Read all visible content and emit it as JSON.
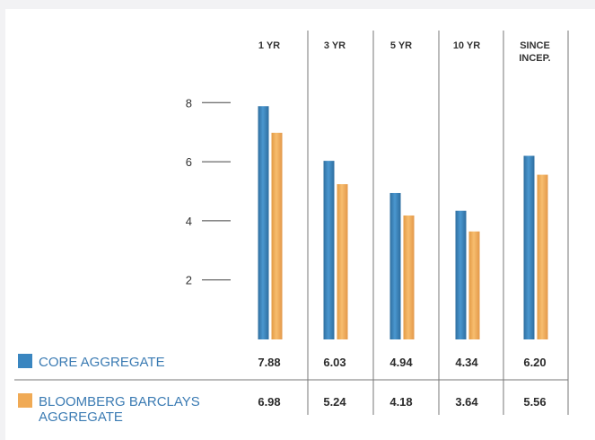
{
  "chart_data": {
    "type": "bar",
    "categories": [
      "1 YR",
      "3 YR",
      "5 YR",
      "10 YR",
      "SINCE INCEP."
    ],
    "category_lines": [
      [
        "1 YR"
      ],
      [
        "3 YR"
      ],
      [
        "5 YR"
      ],
      [
        "10 YR"
      ],
      [
        "SINCE",
        "INCEP."
      ]
    ],
    "series": [
      {
        "name": "CORE AGGREGATE",
        "name_lines": [
          "CORE AGGREGATE"
        ],
        "values": [
          7.88,
          6.03,
          4.94,
          4.34,
          6.2
        ],
        "labels": [
          "7.88",
          "6.03",
          "4.94",
          "4.34",
          "6.20"
        ],
        "color": "#3a86c0"
      },
      {
        "name": "BLOOMBERG BARCLAYS AGGREGATE",
        "name_lines": [
          "BLOOMBERG BARCLAYS",
          "AGGREGATE"
        ],
        "values": [
          6.98,
          5.24,
          4.18,
          3.64,
          5.56
        ],
        "labels": [
          "6.98",
          "5.24",
          "4.18",
          "3.64",
          "5.56"
        ],
        "color": "#f0aa55"
      }
    ],
    "y_ticks": [
      2,
      4,
      6,
      8
    ],
    "y_tick_labels": [
      "2",
      "4",
      "6",
      "8"
    ],
    "ylim": [
      0,
      8
    ],
    "grid": false,
    "legend": "bottom-left, in table rows"
  }
}
